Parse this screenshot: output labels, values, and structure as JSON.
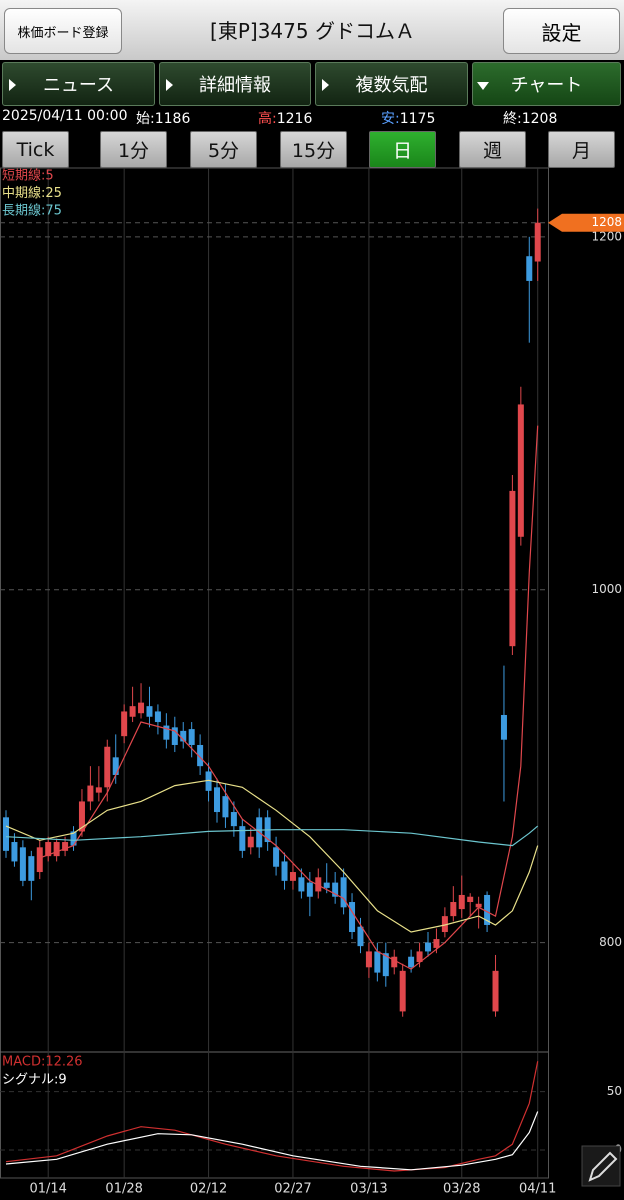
{
  "header": {
    "register_button": "株価ボード登録",
    "title": "[東P]3475 グドコムＡ",
    "settings_button": "設定"
  },
  "tabs": [
    "ニュース",
    "詳細情報",
    "複数気配",
    "チャート"
  ],
  "quote": {
    "date": "2025/04/11 00:00",
    "items": [
      {
        "label": "始:",
        "value": 1186
      },
      {
        "label": "高:",
        "value": 1216
      },
      {
        "label": "安:",
        "value": 1175
      },
      {
        "label": "終:",
        "value": 1208
      }
    ]
  },
  "periods": [
    "Tick",
    "1分",
    "5分",
    "15分",
    "日",
    "週",
    "月"
  ],
  "chart_data": {
    "type": "candlestick",
    "categories": [
      null,
      null,
      null,
      null,
      null,
      "01/14",
      null,
      null,
      null,
      null,
      null,
      null,
      null,
      null,
      "01/28",
      null,
      null,
      null,
      null,
      null,
      null,
      null,
      null,
      null,
      "02/12",
      null,
      null,
      null,
      null,
      null,
      null,
      null,
      null,
      null,
      "02/27",
      null,
      null,
      null,
      null,
      null,
      null,
      null,
      null,
      "03/13",
      null,
      null,
      null,
      null,
      null,
      null,
      null,
      null,
      null,
      null,
      "03/28",
      null,
      null,
      null,
      null,
      null,
      null,
      null,
      null,
      "04/11"
    ],
    "open": [
      871,
      857,
      854,
      849,
      840,
      849,
      849,
      852,
      863,
      863,
      880,
      885,
      888,
      905,
      917,
      928,
      930,
      934,
      931,
      923,
      922,
      920,
      921,
      912,
      897,
      888,
      883,
      874,
      866,
      854,
      871,
      871,
      854,
      846,
      835,
      837,
      834,
      829,
      834,
      834,
      837,
      823,
      809,
      786,
      795,
      794,
      786,
      761,
      792,
      789,
      800,
      797,
      806,
      815,
      819,
      823,
      820,
      827,
      761,
      929,
      968,
      1030,
      1189,
      1186
    ],
    "high": [
      875,
      862,
      858,
      852,
      858,
      860,
      859,
      860,
      866,
      887,
      900,
      900,
      915,
      918,
      935,
      945,
      947,
      945,
      935,
      930,
      928,
      925,
      925,
      918,
      902,
      893,
      890,
      880,
      870,
      865,
      876,
      875,
      860,
      851,
      845,
      842,
      840,
      842,
      845,
      840,
      842,
      828,
      814,
      800,
      800,
      800,
      796,
      788,
      796,
      800,
      806,
      808,
      820,
      832,
      838,
      828,
      826,
      829,
      793,
      957,
      1065,
      1115,
      1200,
      1216
    ],
    "low": [
      848,
      843,
      832,
      824,
      836,
      846,
      846,
      849,
      852,
      860,
      875,
      880,
      880,
      890,
      913,
      925,
      927,
      922,
      918,
      910,
      908,
      910,
      905,
      895,
      880,
      868,
      865,
      860,
      848,
      850,
      848,
      852,
      838,
      830,
      830,
      825,
      815,
      825,
      828,
      822,
      816,
      802,
      794,
      780,
      778,
      775,
      782,
      758,
      783,
      786,
      792,
      794,
      803,
      812,
      814,
      815,
      808,
      806,
      758,
      880,
      963,
      1025,
      1140,
      1175
    ],
    "close": [
      852,
      846,
      835,
      835,
      854,
      857,
      857,
      857,
      855,
      880,
      889,
      888,
      911,
      895,
      931,
      934,
      936,
      928,
      925,
      915,
      912,
      914,
      912,
      900,
      886,
      874,
      871,
      866,
      852,
      860,
      854,
      857,
      843,
      835,
      840,
      829,
      826,
      837,
      831,
      826,
      820,
      806,
      798,
      795,
      783,
      781,
      792,
      784,
      786,
      795,
      795,
      802,
      815,
      823,
      827,
      826,
      822,
      810,
      784,
      915,
      1056,
      1105,
      1175,
      1208
    ],
    "up_color": "#e0474c",
    "down_color": "#3d9be0",
    "last_price_color": "#f07020",
    "ylim": [
      738,
      1239
    ],
    "yticks": [
      800,
      1000,
      1200
    ],
    "grid": true,
    "lines": [
      {
        "name": "短期線:5",
        "color": "#e0474c",
        "x": [
          4,
          8,
          12,
          16,
          20,
          24,
          28,
          32,
          36,
          40,
          44,
          48,
          52,
          56,
          58,
          60,
          61,
          62,
          63
        ],
        "values": [
          848,
          855,
          885,
          925,
          920,
          900,
          870,
          855,
          835,
          825,
          795,
          785,
          800,
          820,
          815,
          860,
          900,
          1010,
          1093
        ]
      },
      {
        "name": "中期線:25",
        "color": "#e8e08a",
        "x": [
          0,
          4,
          8,
          12,
          16,
          20,
          24,
          28,
          32,
          36,
          40,
          44,
          48,
          52,
          56,
          58,
          60,
          62,
          63
        ],
        "values": [
          866,
          858,
          862,
          875,
          880,
          889,
          892,
          888,
          875,
          860,
          840,
          818,
          806,
          810,
          815,
          810,
          818,
          840,
          855
        ]
      },
      {
        "name": "長期線:75",
        "color": "#6cc6cf",
        "x": [
          0,
          8,
          16,
          24,
          32,
          40,
          48,
          56,
          60,
          62,
          63
        ],
        "values": [
          860,
          858,
          860,
          863,
          864,
          864,
          862,
          857,
          855,
          862,
          866
        ]
      }
    ],
    "macd": {
      "ylim": [
        -24,
        84
      ],
      "yticks": [
        0,
        50
      ],
      "series": [
        {
          "name": "MACD:12.26",
          "color": "#d03030",
          "x": [
            0,
            6,
            12,
            16,
            20,
            26,
            32,
            40,
            46,
            52,
            56,
            58,
            60,
            62,
            63
          ],
          "values": [
            -10,
            -5,
            12,
            20,
            17,
            5,
            -5,
            -14,
            -18,
            -15,
            -8,
            -5,
            5,
            40,
            76
          ]
        },
        {
          "name": "シグナル:9",
          "color": "#ffffff",
          "x": [
            0,
            6,
            12,
            18,
            22,
            28,
            34,
            42,
            48,
            54,
            58,
            60,
            62,
            63
          ],
          "values": [
            -12,
            -8,
            5,
            14,
            13,
            5,
            -5,
            -14,
            -17,
            -13,
            -8,
            -4,
            15,
            33
          ]
        }
      ]
    }
  }
}
